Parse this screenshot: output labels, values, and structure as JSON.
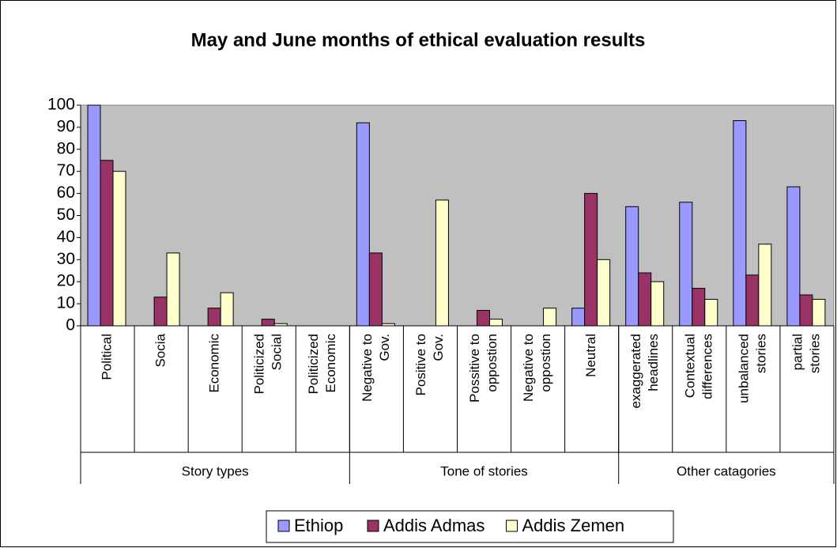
{
  "chart_data": {
    "type": "bar",
    "title": "May and June months of ethical evaluation results",
    "groups": [
      {
        "name": "Story types",
        "categories": [
          [
            "Political"
          ],
          [
            "Socia"
          ],
          [
            "Economic"
          ],
          [
            "Politicized",
            "Social"
          ],
          [
            "Politicized",
            "Economic"
          ]
        ]
      },
      {
        "name": "Tone of stories",
        "categories": [
          [
            "Negative to",
            "Gov."
          ],
          [
            "Positive to",
            "Gov."
          ],
          [
            "Possitive to",
            "oppostion"
          ],
          [
            "Negative to",
            "oppostion"
          ],
          [
            "Neutral"
          ]
        ]
      },
      {
        "name": "Other catagories",
        "categories": [
          [
            "exaggerated",
            "headlines"
          ],
          [
            "Contextual",
            "differences"
          ],
          [
            "unbalanced",
            "stories"
          ],
          [
            "partial",
            "stories"
          ]
        ]
      }
    ],
    "series": [
      {
        "name": "Ethiop",
        "color": "#9999ff",
        "values": [
          100,
          0,
          0,
          0,
          0,
          92,
          0,
          0,
          0,
          8,
          54,
          56,
          93,
          63
        ]
      },
      {
        "name": "Addis Admas",
        "color": "#993366",
        "values": [
          75,
          13,
          8,
          3,
          0,
          33,
          0,
          7,
          0,
          60,
          24,
          17,
          23,
          14
        ]
      },
      {
        "name": "Addis Zemen",
        "color": "#ffffcc",
        "values": [
          70,
          33,
          15,
          1,
          0,
          1,
          57,
          3,
          8,
          30,
          20,
          12,
          37,
          12
        ]
      }
    ],
    "ylim": [
      0,
      100
    ],
    "yticks": [
      0,
      10,
      20,
      30,
      40,
      50,
      60,
      70,
      80,
      90,
      100
    ],
    "grid": false,
    "legend": "bottom",
    "plot_background": "#c0c0c0"
  }
}
